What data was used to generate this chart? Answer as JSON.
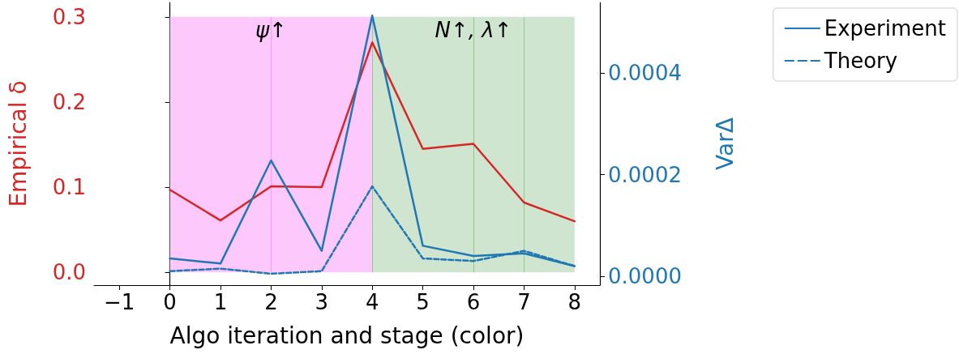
{
  "chart_data": {
    "type": "line",
    "xlabel": "Algo iteration and stage (color)",
    "ylabel": "Empirical δ",
    "y2label": "VarΔ",
    "x": [
      0,
      1,
      2,
      3,
      4,
      5,
      6,
      7,
      8
    ],
    "xlim": [
      -1.5,
      8.5
    ],
    "xticks": [
      {
        "value": -1,
        "label": "−1"
      },
      0,
      1,
      2,
      3,
      4,
      5,
      6,
      7,
      8
    ],
    "ylim": [
      -0.015,
      0.317
    ],
    "yticks": [
      {
        "value": 0,
        "label": "0.0"
      },
      0.1,
      0.2,
      0.3
    ],
    "y2lim": [
      -1.75e-05,
      0.000539
    ],
    "y2ticks": [
      {
        "value": 0,
        "label": "0.0000"
      },
      0.0002,
      0.0004
    ],
    "series": [
      {
        "color": "#d62728",
        "values": [
          0.097,
          0.061,
          0.101,
          0.1,
          0.27,
          0.145,
          0.151,
          0.082,
          0.06
        ]
      },
      {
        "name": "Experiment",
        "color": "#1f77b4",
        "axis": "y2",
        "line_style": "solid",
        "values": [
          3.5e-05,
          2.5e-05,
          0.000228,
          5e-05,
          0.000513,
          6e-05,
          4e-05,
          4.5e-05,
          2e-05
        ]
      },
      {
        "name": "Theory",
        "color": "#1f77b4",
        "axis": "y2",
        "line_style": "dashed",
        "values": [
          1e-05,
          1.5e-05,
          5e-06,
          1e-05,
          0.000177,
          3.5e-05,
          3e-05,
          5e-05,
          2e-05
        ]
      }
    ],
    "bands": [
      {
        "axis": "x",
        "from": 0,
        "to": 4,
        "color": "#fdc9fd"
      },
      {
        "axis": "x",
        "from": 4,
        "to": 8,
        "color": "#cfe5cf"
      }
    ],
    "ref_lines": [
      {
        "axis": "x",
        "value": 2,
        "color": "#ff99ff"
      },
      {
        "axis": "x",
        "value": 4,
        "color": "#8fca8f"
      },
      {
        "axis": "x",
        "value": 6,
        "color": "#8fca8f"
      },
      {
        "axis": "x",
        "value": 7,
        "color": "#8fca8f"
      }
    ],
    "annotations": [
      "ψ↑",
      "N↑, λ↑"
    ],
    "legend": "top right",
    "grid": false,
    "marker": "none"
  }
}
